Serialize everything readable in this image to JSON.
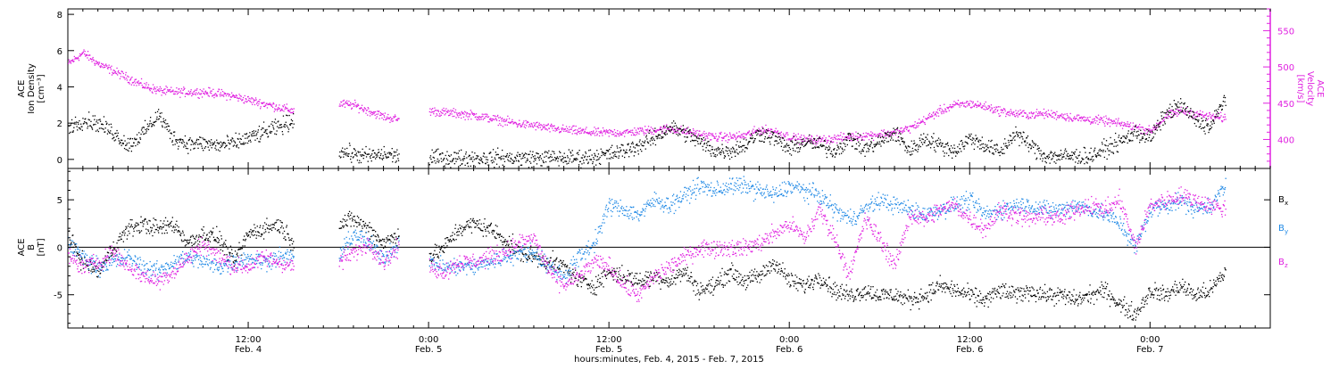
{
  "colors": {
    "bx": "#000000",
    "by": "#1e88e5",
    "bz": "#e020e0",
    "density": "#000000",
    "velocity": "#e020e0",
    "axis": "#000000"
  },
  "x_axis": {
    "title": "hours:minutes, Feb.  4, 2015 - Feb.  7, 2015",
    "range": [
      0,
      80
    ],
    "ticks": [
      {
        "value": 12,
        "time": "12:00",
        "date": "Feb. 4"
      },
      {
        "value": 24,
        "time": "0:00",
        "date": "Feb. 5"
      },
      {
        "value": 36,
        "time": "12:00",
        "date": "Feb. 5"
      },
      {
        "value": 48,
        "time": "0:00",
        "date": "Feb. 6"
      },
      {
        "value": 60,
        "time": "12:00",
        "date": "Feb. 6"
      },
      {
        "value": 72,
        "time": "0:00",
        "date": "Feb. 7"
      }
    ],
    "minor_step": 1
  },
  "chart_data": [
    {
      "type": "scatter",
      "ylabel_left": [
        "ACE",
        "Ion Density",
        "[cm⁻³]"
      ],
      "ylabel_right": [
        "ACE",
        "Velocity",
        "[km/s]"
      ],
      "ylim_left": [
        -0.5,
        8.3
      ],
      "yticks_left": [
        0,
        2,
        4,
        6,
        8
      ],
      "ylim_right": [
        360,
        580
      ],
      "yticks_right": [
        400,
        450,
        500,
        550
      ],
      "series": [
        {
          "key": "density",
          "axis": "left",
          "x": [
            0,
            1,
            2,
            3,
            4,
            5,
            6,
            7,
            8,
            9,
            10,
            11,
            12,
            13,
            14,
            15,
            16,
            17,
            18,
            19,
            20,
            21,
            22,
            23,
            24,
            25,
            26,
            27,
            28,
            29,
            30,
            31,
            32,
            33,
            34,
            35,
            36,
            37,
            38,
            39,
            40,
            41,
            42,
            43,
            44,
            45,
            46,
            47,
            48,
            49,
            50,
            51,
            52,
            53,
            54,
            55,
            56,
            57,
            58,
            59,
            60,
            61,
            62,
            63,
            64,
            65,
            66,
            67,
            68,
            69,
            70,
            71,
            72,
            73,
            74,
            75,
            76,
            77
          ],
          "y": [
            1.8,
            2.2,
            2.0,
            1.5,
            0.8,
            1.5,
            2.5,
            1.2,
            0.9,
            0.9,
            0.8,
            0.9,
            1.2,
            1.5,
            1.8,
            2.2,
            null,
            null,
            0.5,
            0.3,
            0.2,
            0.3,
            0.2,
            null,
            0.1,
            0.1,
            0.1,
            0.1,
            0.1,
            0.1,
            0.1,
            0.1,
            0.1,
            0.1,
            0.1,
            0.2,
            0.3,
            0.5,
            0.8,
            1.2,
            1.8,
            1.5,
            1.0,
            0.5,
            0.5,
            0.8,
            1.5,
            1.2,
            0.6,
            1.0,
            0.8,
            0.5,
            1.2,
            0.6,
            1.0,
            1.5,
            0.5,
            1.2,
            0.8,
            0.5,
            1.2,
            0.8,
            0.4,
            1.5,
            0.8,
            0.2,
            0.2,
            0.2,
            0.2,
            0.6,
            1.0,
            1.5,
            1.2,
            2.5,
            3.0,
            2.2,
            1.8,
            3.5
          ]
        },
        {
          "key": "velocity",
          "axis": "right",
          "x": [
            0,
            1,
            2,
            3,
            4,
            5,
            6,
            7,
            8,
            9,
            10,
            11,
            12,
            13,
            14,
            15,
            16,
            17,
            18,
            19,
            20,
            21,
            22,
            23,
            24,
            25,
            26,
            27,
            28,
            29,
            30,
            31,
            32,
            33,
            34,
            35,
            36,
            37,
            38,
            39,
            40,
            41,
            42,
            43,
            44,
            45,
            46,
            47,
            48,
            49,
            50,
            51,
            52,
            53,
            54,
            55,
            56,
            57,
            58,
            59,
            60,
            61,
            62,
            63,
            64,
            65,
            66,
            67,
            68,
            69,
            70,
            71,
            72,
            73,
            74,
            75,
            76,
            77
          ],
          "y": [
            505,
            520,
            505,
            495,
            485,
            475,
            468,
            466,
            466,
            466,
            464,
            460,
            455,
            450,
            445,
            440,
            null,
            null,
            450,
            448,
            440,
            432,
            428,
            null,
            440,
            438,
            436,
            434,
            430,
            426,
            422,
            420,
            416,
            414,
            412,
            410,
            410,
            410,
            412,
            414,
            416,
            412,
            408,
            404,
            404,
            406,
            414,
            412,
            404,
            400,
            400,
            402,
            404,
            406,
            408,
            410,
            416,
            428,
            440,
            448,
            450,
            446,
            440,
            436,
            435,
            436,
            434,
            430,
            428,
            426,
            422,
            418,
            412,
            432,
            440,
            436,
            432,
            430
          ]
        }
      ]
    },
    {
      "type": "scatter",
      "ylabel_left": [
        "ACE",
        "B",
        "[nT]"
      ],
      "ylim_left": [
        -8.5,
        8.3
      ],
      "yticks_left": [
        -5,
        0,
        5
      ],
      "zero_line": true,
      "legend_position": "right",
      "series": [
        {
          "key": "bx",
          "name": "Bx",
          "label_main": "B",
          "label_sub": "x",
          "x": [
            0,
            1,
            2,
            3,
            4,
            5,
            6,
            7,
            8,
            9,
            10,
            11,
            12,
            13,
            14,
            15,
            16,
            17,
            18,
            19,
            20,
            21,
            22,
            23,
            24,
            25,
            26,
            27,
            28,
            29,
            30,
            31,
            32,
            33,
            34,
            35,
            36,
            37,
            38,
            39,
            40,
            41,
            42,
            43,
            44,
            45,
            46,
            47,
            48,
            49,
            50,
            51,
            52,
            53,
            54,
            55,
            56,
            57,
            58,
            59,
            60,
            61,
            62,
            63,
            64,
            65,
            66,
            67,
            68,
            69,
            70,
            71,
            72,
            73,
            74,
            75,
            76,
            77
          ],
          "y": [
            1.0,
            -1.5,
            -2.5,
            0.0,
            2.0,
            2.5,
            2.0,
            2.5,
            0.5,
            1.5,
            1.0,
            -1.5,
            1.5,
            2.0,
            2.5,
            0.5,
            null,
            null,
            2.5,
            3.0,
            2.0,
            0.5,
            1.5,
            null,
            -1.0,
            0.0,
            2.0,
            2.5,
            2.0,
            1.0,
            -0.5,
            -1.0,
            -1.5,
            -2.0,
            -3.5,
            -4.0,
            -2.5,
            -3.0,
            -3.5,
            -3.0,
            -3.5,
            -2.5,
            -4.5,
            -4.0,
            -2.5,
            -3.5,
            -3.0,
            -1.5,
            -3.5,
            -4.0,
            -3.0,
            -4.5,
            -5.0,
            -4.5,
            -5.0,
            -5.0,
            -5.5,
            -5.0,
            -4.0,
            -4.5,
            -5.0,
            -5.5,
            -4.5,
            -5.0,
            -4.5,
            -5.0,
            -5.0,
            -5.5,
            -5.0,
            -4.5,
            -6.0,
            -7.0,
            -4.5,
            -5.0,
            -4.0,
            -5.0,
            -4.5,
            -2.5
          ]
        },
        {
          "key": "by",
          "name": "By",
          "label_main": "B",
          "label_sub": "y",
          "x": [
            0,
            1,
            2,
            3,
            4,
            5,
            6,
            7,
            8,
            9,
            10,
            11,
            12,
            13,
            14,
            15,
            16,
            17,
            18,
            19,
            20,
            21,
            22,
            23,
            24,
            25,
            26,
            27,
            28,
            29,
            30,
            31,
            32,
            33,
            34,
            35,
            36,
            37,
            38,
            39,
            40,
            41,
            42,
            43,
            44,
            45,
            46,
            47,
            48,
            49,
            50,
            51,
            52,
            53,
            54,
            55,
            56,
            57,
            58,
            59,
            60,
            61,
            62,
            63,
            64,
            65,
            66,
            67,
            68,
            69,
            70,
            71,
            72,
            73,
            74,
            75,
            76,
            77
          ],
          "y": [
            0.5,
            -1.0,
            -2.0,
            -1.5,
            -1.0,
            -2.0,
            -2.5,
            -1.5,
            -1.0,
            -1.5,
            -2.0,
            -1.5,
            -1.0,
            -1.5,
            -1.0,
            -1.0,
            null,
            null,
            -1.0,
            1.5,
            0.5,
            -1.0,
            0.5,
            null,
            -1.5,
            -2.0,
            -2.0,
            -2.0,
            -1.5,
            -1.0,
            -0.5,
            -0.5,
            -2.0,
            -3.0,
            -1.0,
            0.5,
            4.5,
            4.0,
            3.5,
            5.0,
            4.5,
            5.5,
            6.5,
            6.0,
            6.5,
            6.5,
            6.0,
            5.5,
            6.5,
            6.0,
            5.5,
            4.0,
            3.0,
            4.0,
            5.0,
            4.5,
            4.0,
            3.5,
            4.0,
            4.5,
            5.0,
            3.5,
            4.0,
            4.5,
            4.5,
            4.0,
            4.0,
            4.5,
            4.0,
            3.5,
            2.5,
            0.0,
            4.0,
            4.5,
            5.0,
            4.0,
            4.5,
            6.5
          ]
        },
        {
          "key": "bz",
          "name": "Bz",
          "label_main": "B",
          "label_sub": "z",
          "x": [
            0,
            1,
            2,
            3,
            4,
            5,
            6,
            7,
            8,
            9,
            10,
            11,
            12,
            13,
            14,
            15,
            16,
            17,
            18,
            19,
            20,
            21,
            22,
            23,
            24,
            25,
            26,
            27,
            28,
            29,
            30,
            31,
            32,
            33,
            34,
            35,
            36,
            37,
            38,
            39,
            40,
            41,
            42,
            43,
            44,
            45,
            46,
            47,
            48,
            49,
            50,
            51,
            52,
            53,
            54,
            55,
            56,
            57,
            58,
            59,
            60,
            61,
            62,
            63,
            64,
            65,
            66,
            67,
            68,
            69,
            70,
            71,
            72,
            73,
            74,
            75,
            76,
            77
          ],
          "y": [
            -1.0,
            -2.0,
            -1.5,
            -0.5,
            -2.0,
            -3.0,
            -3.5,
            -2.5,
            -1.0,
            0.5,
            -1.0,
            -2.0,
            -2.0,
            -1.0,
            -1.5,
            -2.0,
            null,
            null,
            -1.5,
            -0.5,
            0.5,
            -1.5,
            0.0,
            null,
            -2.0,
            -2.5,
            -1.5,
            -1.5,
            -1.0,
            -0.5,
            0.5,
            1.0,
            -2.5,
            -4.0,
            -3.0,
            -1.5,
            -2.0,
            -4.0,
            -5.0,
            -3.0,
            -2.0,
            -1.0,
            0.0,
            0.0,
            0.0,
            0.0,
            0.5,
            1.5,
            2.5,
            1.0,
            4.0,
            1.0,
            -3.0,
            3.0,
            1.0,
            -2.0,
            3.5,
            3.0,
            4.0,
            4.5,
            3.0,
            2.0,
            4.0,
            3.5,
            3.0,
            3.5,
            3.0,
            4.0,
            4.5,
            4.0,
            5.0,
            0.0,
            4.5,
            5.0,
            5.5,
            5.0,
            4.5,
            4.0
          ]
        }
      ]
    }
  ]
}
